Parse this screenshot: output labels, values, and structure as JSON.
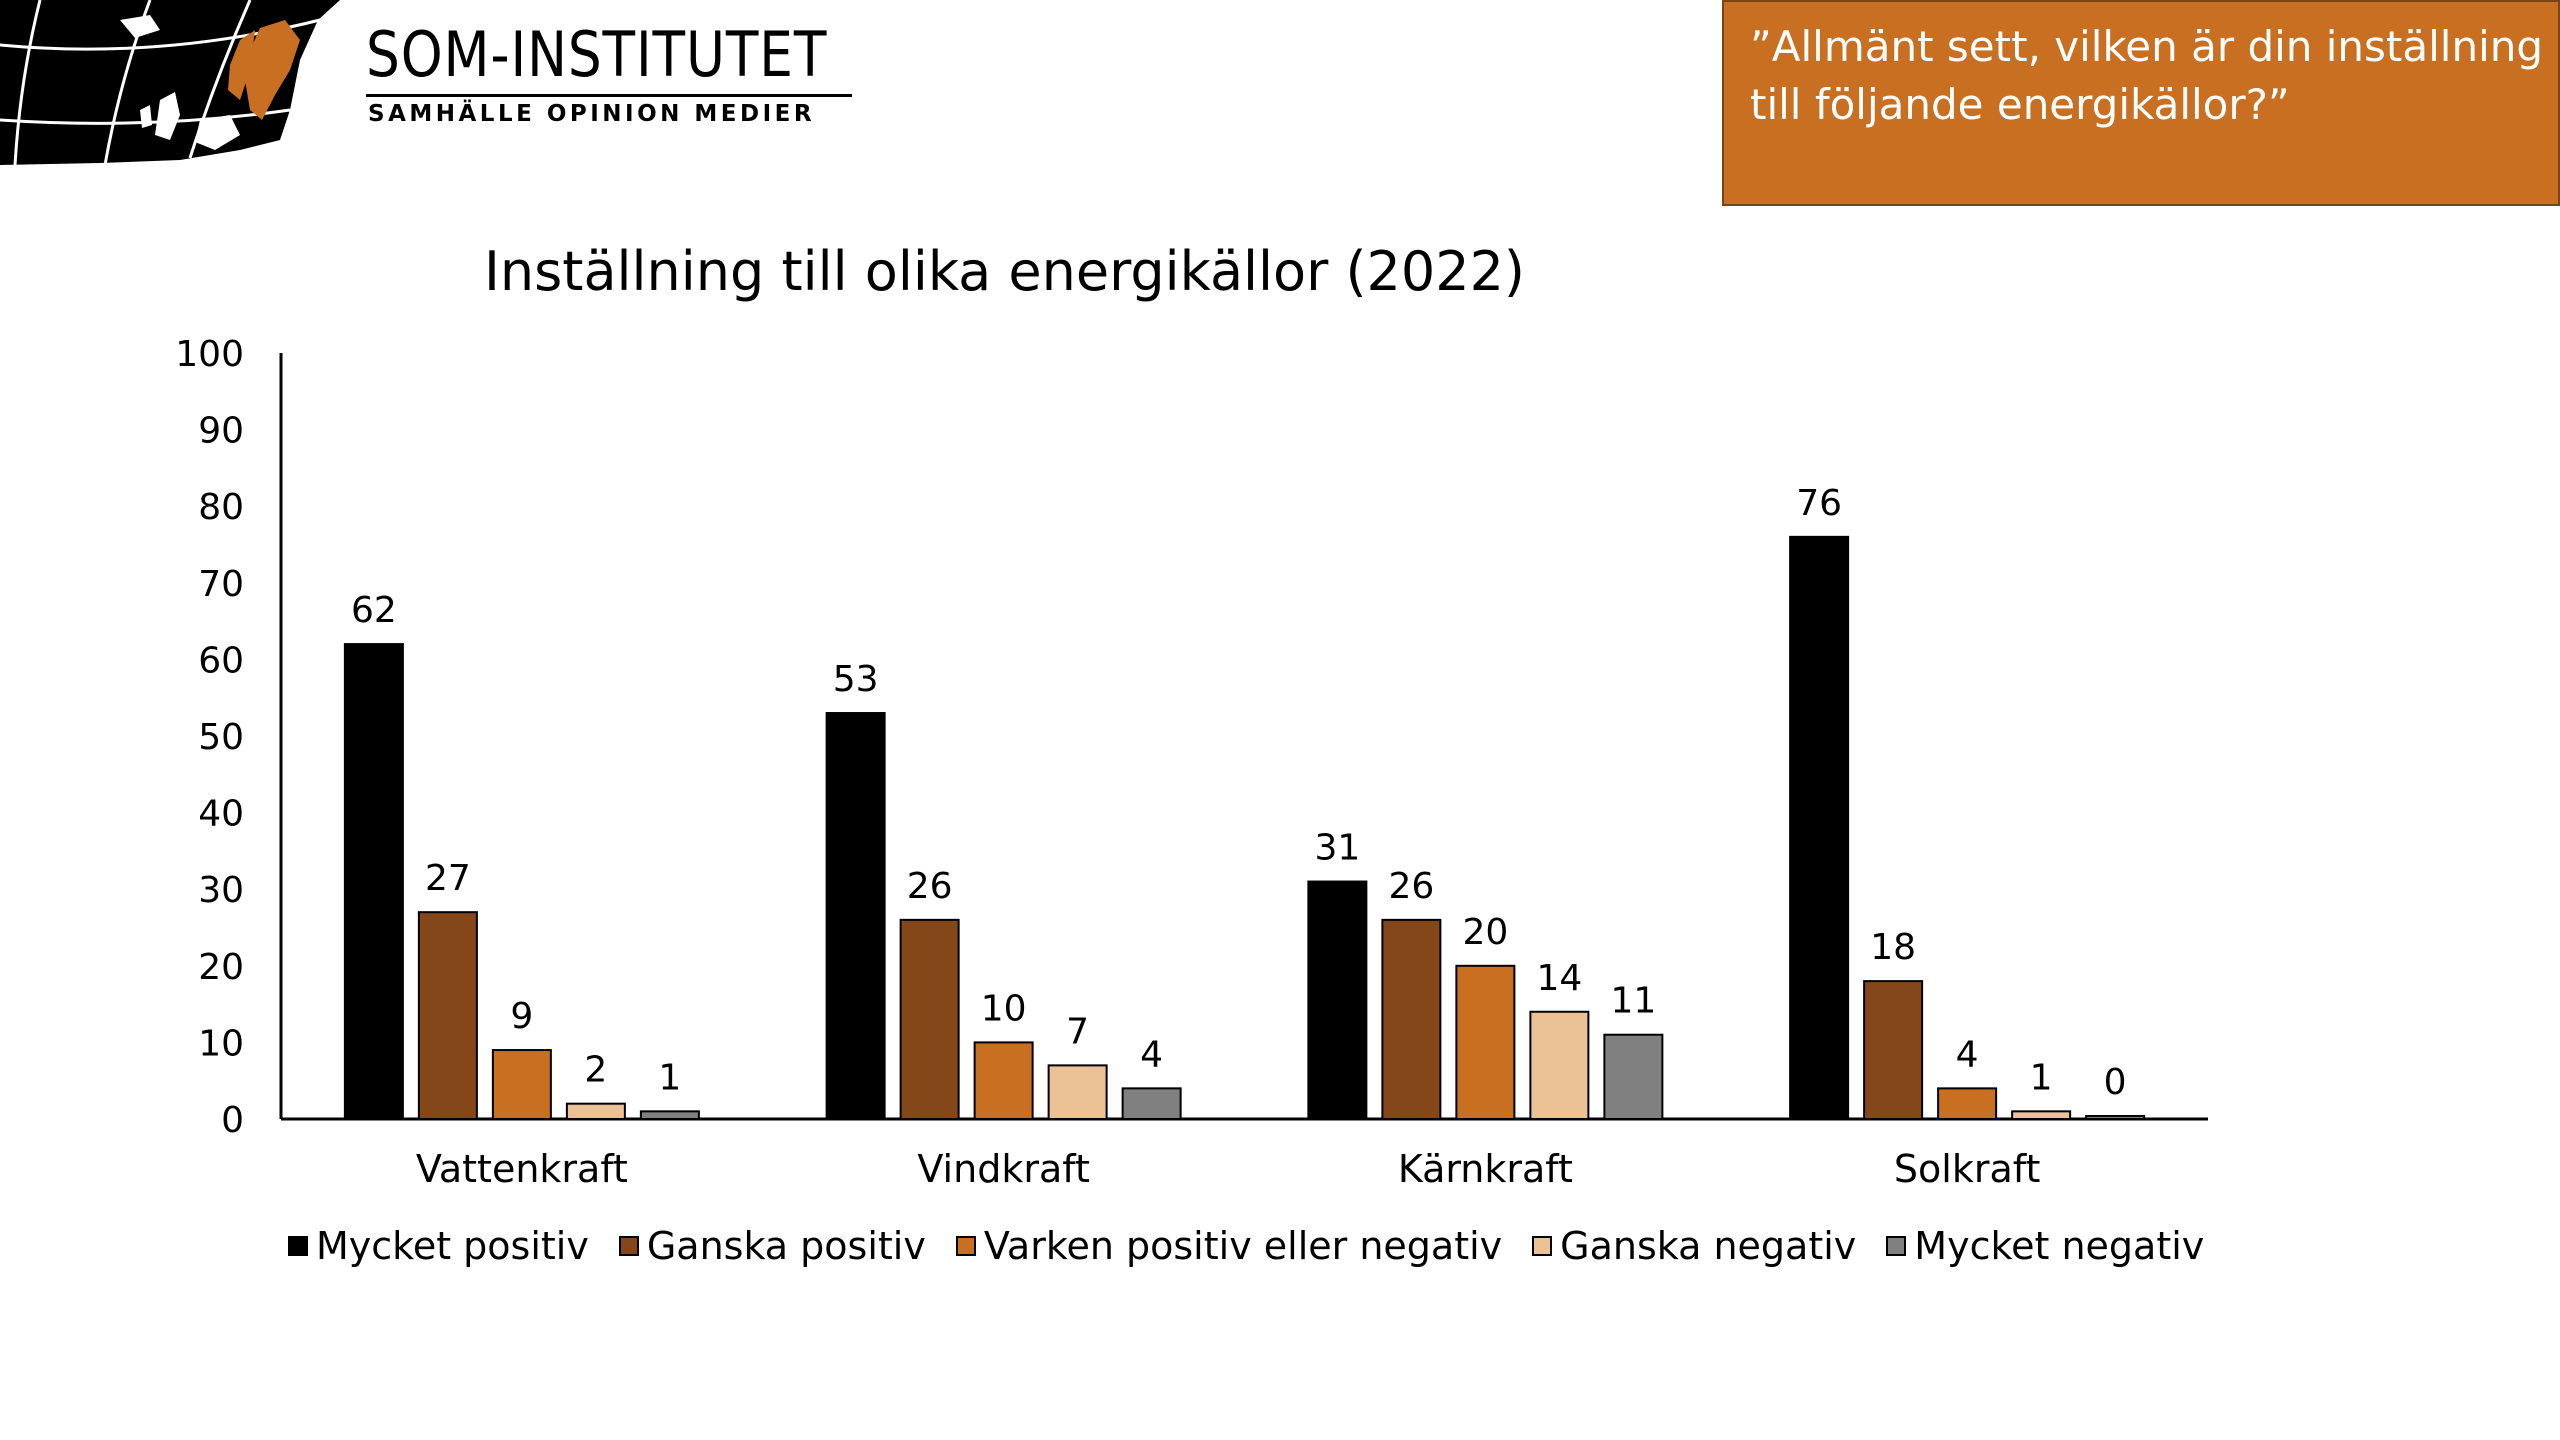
{
  "logo": {
    "name": "SOM-INSTITUTET",
    "tagline": "SAMHÄLLE  OPINION  MEDIER",
    "map_icon": "europe-map-icon"
  },
  "question": "”Allmänt sett, vilken är din inställning till följande energikällor?”",
  "colors": {
    "accent": "#c86f22",
    "series": [
      "#000000",
      "#84471a",
      "#c86f22",
      "#eac296",
      "#808080"
    ]
  },
  "chart_data": {
    "type": "bar",
    "title": "Inställning till olika energikällor (2022)",
    "categories": [
      "Vattenkraft",
      "Vindkraft",
      "Kärnkraft",
      "Solkraft"
    ],
    "series": [
      {
        "name": "Mycket positiv",
        "values": [
          62,
          53,
          31,
          76
        ]
      },
      {
        "name": "Ganska positiv",
        "values": [
          27,
          26,
          26,
          18
        ]
      },
      {
        "name": "Varken positiv eller negativ",
        "values": [
          9,
          10,
          20,
          4
        ]
      },
      {
        "name": "Ganska negativ",
        "values": [
          2,
          7,
          14,
          1
        ]
      },
      {
        "name": "Mycket negativ",
        "values": [
          1,
          4,
          11,
          0
        ]
      }
    ],
    "ylim": [
      0,
      100
    ],
    "yticks": [
      0,
      10,
      20,
      30,
      40,
      50,
      60,
      70,
      80,
      90,
      100
    ],
    "xlabel": "",
    "ylabel": "",
    "grid": false,
    "legend_position": "bottom"
  }
}
